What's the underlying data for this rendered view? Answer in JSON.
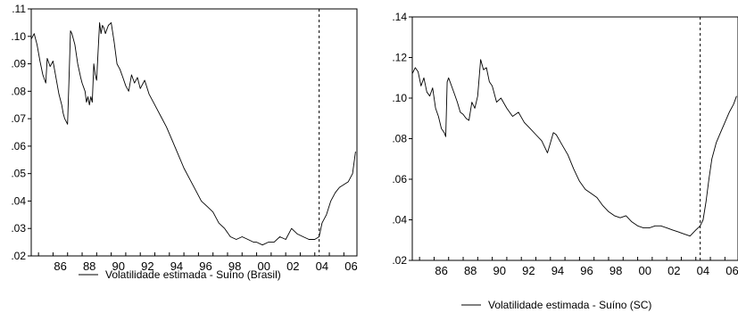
{
  "chart_data": [
    {
      "type": "line",
      "title": "",
      "xlabel": "",
      "ylabel": "",
      "xlim": [
        1984.5,
        2006.9
      ],
      "ylim": [
        0.02,
        0.11
      ],
      "x_tick_labels": [
        "86",
        "88",
        "90",
        "92",
        "94",
        "96",
        "98",
        "00",
        "02",
        "04",
        "06"
      ],
      "y_tick_labels": [
        ".02",
        ".03",
        ".04",
        ".05",
        ".06",
        ".07",
        ".08",
        ".09",
        ".10",
        ".11"
      ],
      "vline_x": 2004.3,
      "grid": false,
      "legend_position": "bottom-center",
      "series": [
        {
          "name": "Volatilidade estimada - Suíno (Brasil)",
          "color": "#000000",
          "x": [
            1984.5,
            1984.7,
            1984.9,
            1985.1,
            1985.3,
            1985.5,
            1985.6,
            1985.8,
            1986.0,
            1986.2,
            1986.4,
            1986.6,
            1986.7,
            1986.8,
            1986.9,
            1987.0,
            1987.1,
            1987.2,
            1987.3,
            1987.5,
            1987.7,
            1987.9,
            1988.0,
            1988.2,
            1988.3,
            1988.4,
            1988.5,
            1988.6,
            1988.7,
            1988.8,
            1988.9,
            1989.0,
            1989.1,
            1989.2,
            1989.3,
            1989.4,
            1989.5,
            1989.6,
            1989.8,
            1990.0,
            1990.2,
            1990.4,
            1990.6,
            1990.8,
            1991.0,
            1991.2,
            1991.4,
            1991.6,
            1991.8,
            1992.0,
            1992.3,
            1992.6,
            1993.0,
            1993.4,
            1993.8,
            1994.2,
            1994.6,
            1995.0,
            1995.4,
            1995.8,
            1996.2,
            1996.6,
            1997.0,
            1997.4,
            1997.8,
            1998.2,
            1998.6,
            1999.0,
            1999.4,
            1999.8,
            2000.0,
            2000.4,
            2000.8,
            2001.2,
            2001.6,
            2002.0,
            2002.4,
            2002.8,
            2003.2,
            2003.6,
            2004.0,
            2004.3,
            2004.5,
            2004.8,
            2005.1,
            2005.4,
            2005.7,
            2006.0,
            2006.3,
            2006.6,
            2006.8
          ],
          "y": [
            0.099,
            0.101,
            0.097,
            0.091,
            0.086,
            0.083,
            0.092,
            0.089,
            0.091,
            0.085,
            0.079,
            0.075,
            0.072,
            0.07,
            0.069,
            0.068,
            0.085,
            0.102,
            0.101,
            0.097,
            0.09,
            0.085,
            0.083,
            0.08,
            0.076,
            0.078,
            0.075,
            0.078,
            0.076,
            0.09,
            0.086,
            0.084,
            0.095,
            0.105,
            0.101,
            0.104,
            0.103,
            0.101,
            0.104,
            0.105,
            0.098,
            0.09,
            0.088,
            0.085,
            0.082,
            0.08,
            0.086,
            0.083,
            0.085,
            0.081,
            0.084,
            0.079,
            0.075,
            0.071,
            0.067,
            0.062,
            0.057,
            0.052,
            0.048,
            0.044,
            0.04,
            0.038,
            0.036,
            0.032,
            0.03,
            0.027,
            0.026,
            0.027,
            0.026,
            0.025,
            0.025,
            0.024,
            0.025,
            0.025,
            0.027,
            0.026,
            0.03,
            0.028,
            0.027,
            0.026,
            0.026,
            0.027,
            0.032,
            0.035,
            0.04,
            0.043,
            0.045,
            0.046,
            0.047,
            0.05,
            0.058
          ]
        }
      ]
    },
    {
      "type": "line",
      "title": "",
      "xlabel": "",
      "ylabel": "",
      "xlim": [
        1984.5,
        2006.9
      ],
      "ylim": [
        0.02,
        0.14
      ],
      "x_tick_labels": [
        "86",
        "88",
        "90",
        "92",
        "94",
        "96",
        "98",
        "00",
        "02",
        "04",
        "06"
      ],
      "y_tick_labels": [
        ".02",
        ".04",
        ".06",
        ".08",
        ".10",
        ".12",
        ".14"
      ],
      "vline_x": 2004.3,
      "grid": false,
      "legend_position": "bottom-center",
      "series": [
        {
          "name": "Volatilidade estimada - Suíno (SC)",
          "color": "#000000",
          "x": [
            1984.5,
            1984.7,
            1984.9,
            1985.1,
            1985.3,
            1985.5,
            1985.7,
            1985.9,
            1986.1,
            1986.3,
            1986.5,
            1986.7,
            1986.8,
            1986.9,
            1987.0,
            1987.2,
            1987.4,
            1987.6,
            1987.8,
            1988.0,
            1988.2,
            1988.4,
            1988.6,
            1988.8,
            1989.0,
            1989.2,
            1989.4,
            1989.6,
            1989.8,
            1990.0,
            1990.3,
            1990.6,
            1991.0,
            1991.4,
            1991.8,
            1992.2,
            1992.6,
            1993.0,
            1993.4,
            1993.8,
            1994.0,
            1994.2,
            1994.4,
            1994.8,
            1995.2,
            1995.6,
            1996.0,
            1996.4,
            1996.8,
            1997.2,
            1997.6,
            1998.0,
            1998.4,
            1998.8,
            1999.2,
            1999.6,
            2000.0,
            2000.4,
            2000.8,
            2001.2,
            2001.6,
            2002.0,
            2002.4,
            2002.8,
            2003.2,
            2003.6,
            2004.0,
            2004.3,
            2004.5,
            2004.7,
            2004.9,
            2005.1,
            2005.4,
            2005.7,
            2006.0,
            2006.3,
            2006.6,
            2006.8
          ],
          "y": [
            0.112,
            0.115,
            0.113,
            0.106,
            0.11,
            0.103,
            0.101,
            0.105,
            0.095,
            0.091,
            0.085,
            0.083,
            0.081,
            0.108,
            0.11,
            0.106,
            0.102,
            0.098,
            0.093,
            0.092,
            0.09,
            0.089,
            0.098,
            0.095,
            0.101,
            0.119,
            0.114,
            0.115,
            0.108,
            0.106,
            0.098,
            0.1,
            0.095,
            0.091,
            0.093,
            0.088,
            0.085,
            0.082,
            0.079,
            0.073,
            0.078,
            0.083,
            0.082,
            0.077,
            0.072,
            0.065,
            0.059,
            0.055,
            0.053,
            0.051,
            0.047,
            0.044,
            0.042,
            0.041,
            0.042,
            0.039,
            0.037,
            0.036,
            0.036,
            0.037,
            0.037,
            0.036,
            0.035,
            0.034,
            0.033,
            0.032,
            0.035,
            0.037,
            0.04,
            0.049,
            0.06,
            0.07,
            0.078,
            0.083,
            0.088,
            0.093,
            0.097,
            0.101
          ]
        }
      ]
    }
  ]
}
